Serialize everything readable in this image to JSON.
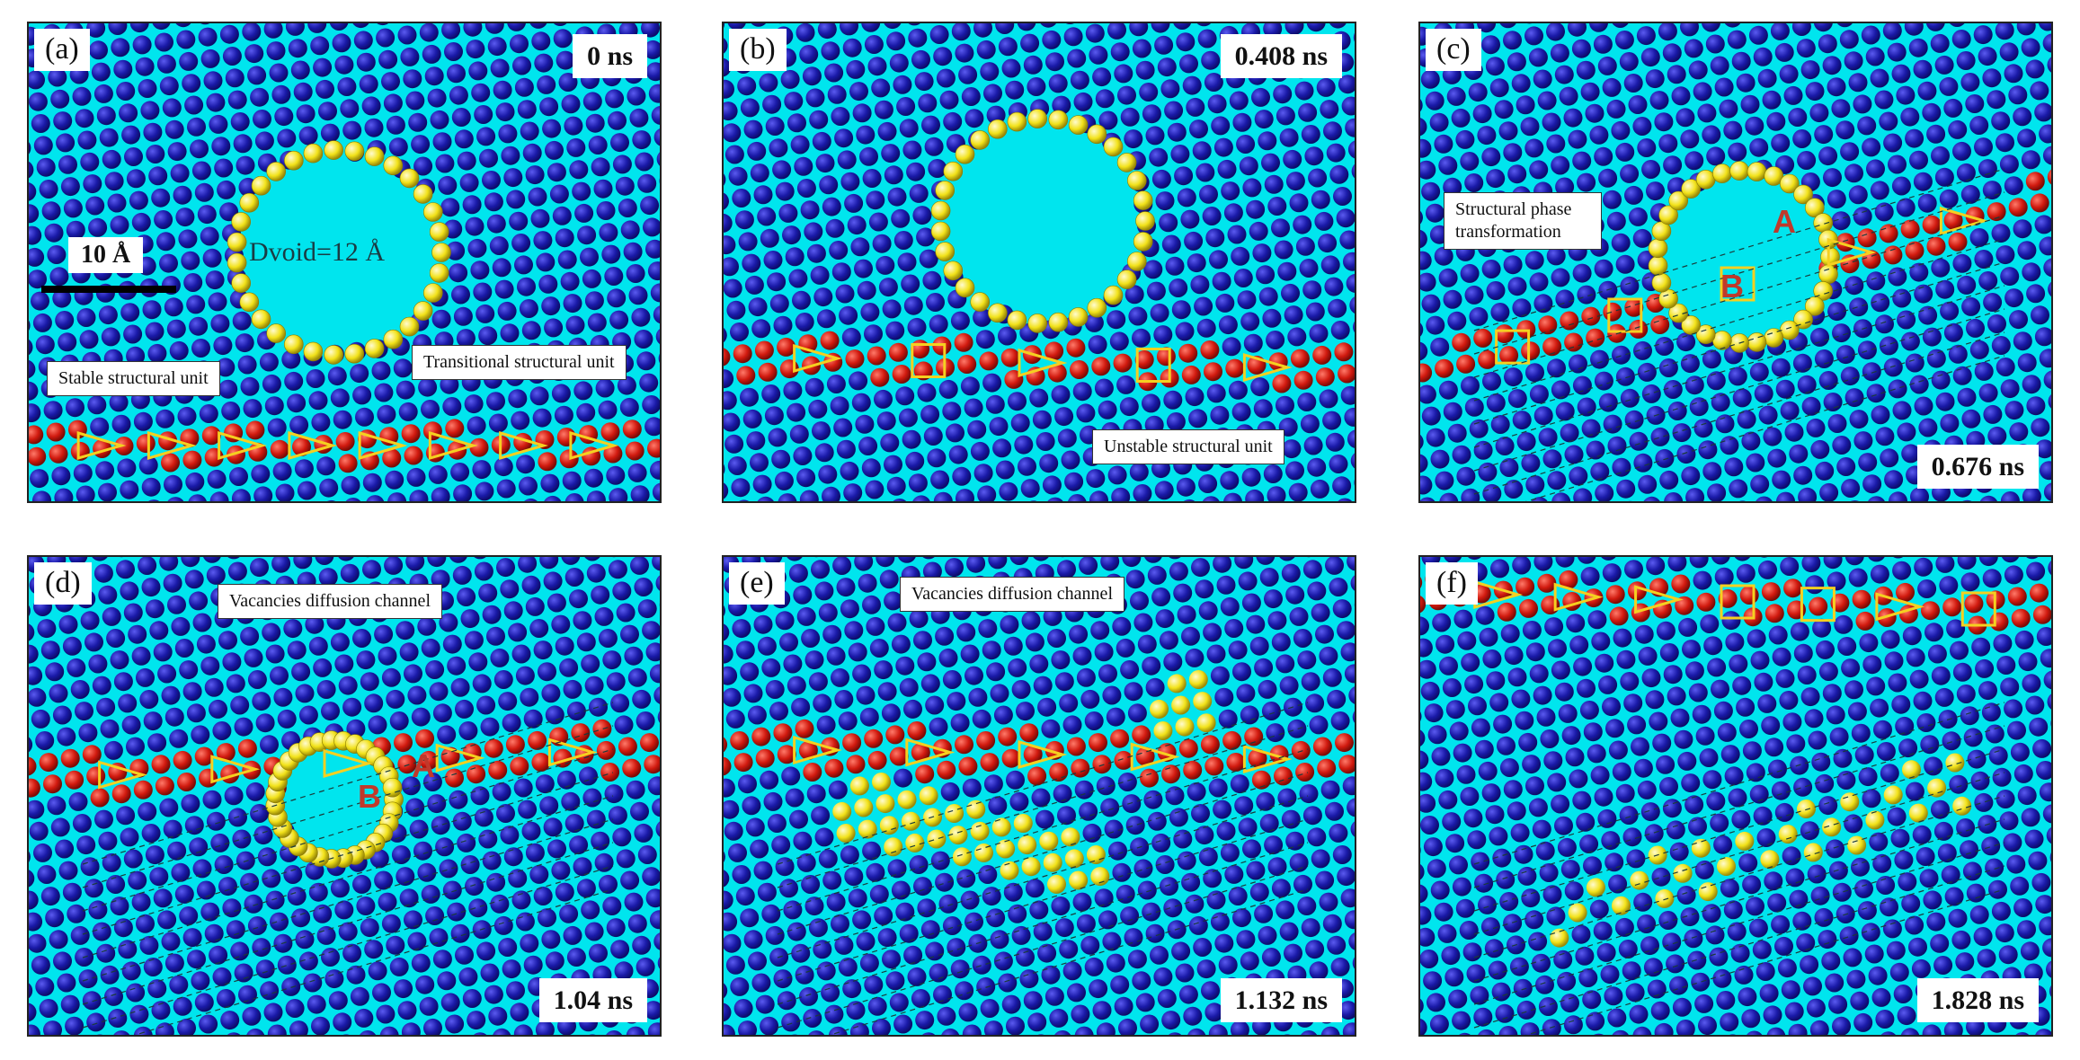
{
  "panels": [
    {
      "id": "a",
      "letter": "(a)",
      "time": "0 ns"
    },
    {
      "id": "b",
      "letter": "(b)",
      "time": "0.408 ns"
    },
    {
      "id": "c",
      "letter": "(c)",
      "time": "0.676 ns"
    },
    {
      "id": "d",
      "letter": "(d)",
      "time": "1.04 ns"
    },
    {
      "id": "e",
      "letter": "(e)",
      "time": "1.132 ns"
    },
    {
      "id": "f",
      "letter": "(f)",
      "time": "1.828 ns"
    }
  ],
  "annotations": {
    "scale_bar": "10 Å",
    "void_diameter": "Dvoid=12 Å",
    "stable_unit": "Stable structural unit",
    "transitional_unit": "Transitional structural unit",
    "unstable_unit": "Unstable structural unit",
    "phase_transformation": "Structural phase transformation",
    "diffusion_channel_d": "Vacancies diffusion channel",
    "diffusion_channel_e": "Vacancies diffusion channel",
    "region_A": "A",
    "region_B": "B"
  },
  "colors": {
    "background": "#00e5ee",
    "bulk_atom": "#1a1aa8",
    "boundary_atom": "#d11a0f",
    "void_atom": "#f2e21a",
    "unit_outline": "#f5d020"
  }
}
